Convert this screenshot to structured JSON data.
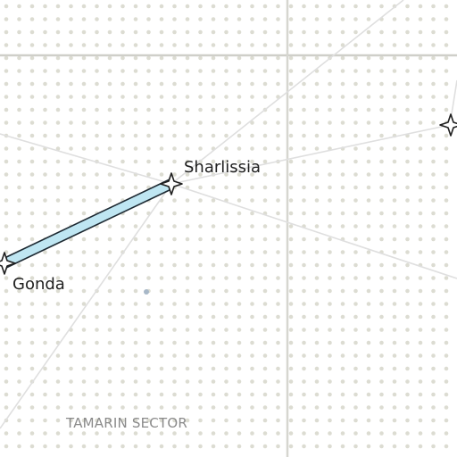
{
  "map": {
    "background": "#ffffff",
    "dot_color": "#d9d9d0",
    "grid_line_color": "#d6d6d0",
    "route_color": "#dedede",
    "highlight_route": {
      "fill": "#bfe6f2",
      "stroke": "#1e2a33",
      "from": "gonda",
      "to": "sharlissia"
    },
    "sector": {
      "name": "TAMARIN SECTOR"
    },
    "systems": [
      {
        "id": "sharlissia",
        "name": "Sharlissia",
        "icon": "star-icon"
      },
      {
        "id": "gonda",
        "name": "Gonda",
        "icon": "star-icon"
      },
      {
        "id": "east-system",
        "name": "",
        "icon": "star-icon"
      }
    ]
  }
}
